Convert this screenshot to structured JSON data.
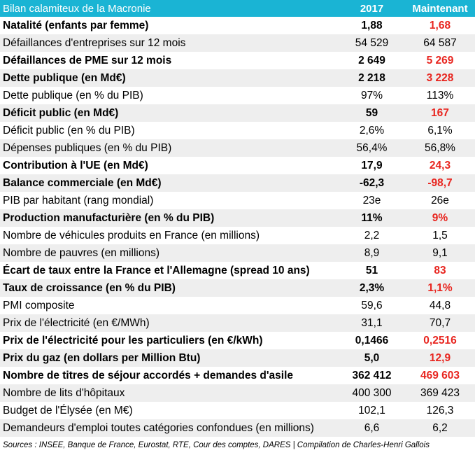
{
  "table": {
    "title": "Bilan calamiteux de la Macronie",
    "col_2017": "2017",
    "col_now": "Maintenant",
    "rows": [
      {
        "label": "Natalité (enfants par femme)",
        "v2017": "1,88",
        "now": "1,68",
        "bold": true
      },
      {
        "label": "Défaillances d'entreprises sur 12 mois",
        "v2017": "54 529",
        "now": "64 587",
        "bold": false
      },
      {
        "label": "Défaillances de PME sur 12 mois",
        "v2017": "2 649",
        "now": "5 269",
        "bold": true
      },
      {
        "label": "Dette publique (en Md€)",
        "v2017": "2 218",
        "now": "3 228",
        "bold": true
      },
      {
        "label": "Dette publique (en % du PIB)",
        "v2017": "97%",
        "now": "113%",
        "bold": false
      },
      {
        "label": "Déficit public (en Md€)",
        "v2017": "59",
        "now": "167",
        "bold": true
      },
      {
        "label": "Déficit public (en % du PIB)",
        "v2017": "2,6%",
        "now": "6,1%",
        "bold": false
      },
      {
        "label": "Dépenses publiques (en % du PIB)",
        "v2017": "56,4%",
        "now": "56,8%",
        "bold": false
      },
      {
        "label": "Contribution à l'UE (en Md€)",
        "v2017": "17,9",
        "now": "24,3",
        "bold": true
      },
      {
        "label": "Balance commerciale (en Md€)",
        "v2017": "-62,3",
        "now": "-98,7",
        "bold": true
      },
      {
        "label": "PIB par habitant (rang mondial)",
        "v2017": "23e",
        "now": "26e",
        "bold": false
      },
      {
        "label": "Production manufacturière (en % du PIB)",
        "v2017": "11%",
        "now": "9%",
        "bold": true
      },
      {
        "label": "Nombre de véhicules produits en France (en millions)",
        "v2017": "2,2",
        "now": "1,5",
        "bold": false
      },
      {
        "label": "Nombre de pauvres (en millions)",
        "v2017": "8,9",
        "now": "9,1",
        "bold": false
      },
      {
        "label": "Écart de taux entre la France et l'Allemagne (spread 10 ans)",
        "v2017": "51",
        "now": "83",
        "bold": true
      },
      {
        "label": "Taux de croissance (en % du PIB)",
        "v2017": "2,3%",
        "now": "1,1%",
        "bold": true
      },
      {
        "label": "PMI composite",
        "v2017": "59,6",
        "now": "44,8",
        "bold": false
      },
      {
        "label": "Prix de l'électricité (en €/MWh)",
        "v2017": "31,1",
        "now": "70,7",
        "bold": false
      },
      {
        "label": "Prix de l'électricité pour les particuliers (en €/kWh)",
        "v2017": "0,1466",
        "now": "0,2516",
        "bold": true
      },
      {
        "label": "Prix du gaz (en dollars per Million Btu)",
        "v2017": "5,0",
        "now": "12,9",
        "bold": true
      },
      {
        "label": "Nombre de titres de séjour accordés + demandes d'asile",
        "v2017": "362 412",
        "now": "469 603",
        "bold": true
      },
      {
        "label": "Nombre de lits d'hôpitaux",
        "v2017": "400 300",
        "now": "369 423",
        "bold": false
      },
      {
        "label": "Budget de l'Élysée (en M€)",
        "v2017": "102,1",
        "now": "126,3",
        "bold": false
      },
      {
        "label": "Demandeurs d'emploi toutes catégories confondues (en millions)",
        "v2017": "6,6",
        "now": "6,2",
        "bold": false
      }
    ]
  },
  "sources": "Sources : INSEE, Banque de France, Eurostat, RTE, Cour des comptes, DARES | Compilation de Charles-Henri Gallois",
  "colors": {
    "header_bg": "#1ab4d4",
    "highlight_red": "#e8251f",
    "stripe": "#eeeeee"
  }
}
